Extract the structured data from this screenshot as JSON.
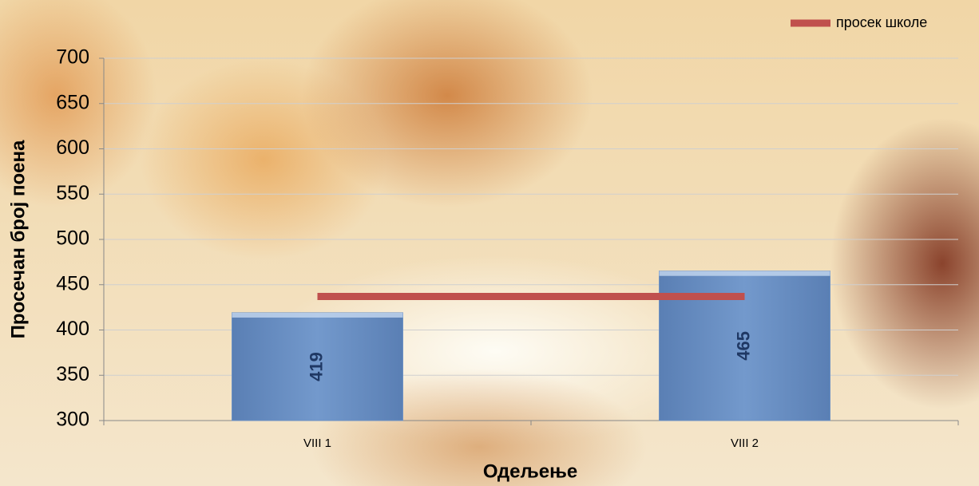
{
  "chart_data": {
    "type": "bar",
    "x_label": "Одељење",
    "y_label": "Просечан број  поена",
    "categories": [
      "VIII 1",
      "VIII 2"
    ],
    "series": [
      {
        "type": "bar",
        "color": "#6d91c3",
        "values": [
          419,
          465
        ]
      },
      {
        "type": "line",
        "name": "просек школе",
        "color": "#c0504d",
        "values": [
          437,
          437
        ]
      }
    ],
    "ylim": [
      300,
      700
    ],
    "yticks": [
      300,
      350,
      400,
      450,
      500,
      550,
      600,
      650,
      700
    ],
    "grid": true,
    "legend": "top-right"
  }
}
